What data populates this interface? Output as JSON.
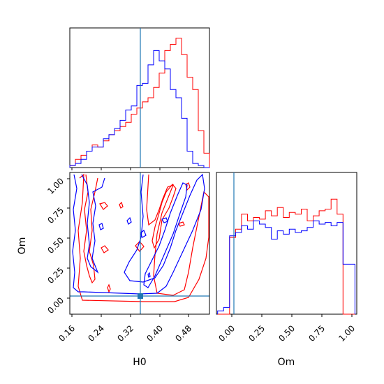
{
  "chart_data": {
    "type": "corner",
    "parameters": [
      "H0",
      "Om"
    ],
    "truths": {
      "H0": 0.35,
      "Om": 0.02
    },
    "colors": {
      "blue": "#0000ff",
      "red": "#ff0000",
      "truth": "#1f77b4"
    },
    "panels": {
      "hist_H0": {
        "bin_edges": [
          0.155,
          0.17,
          0.185,
          0.2,
          0.215,
          0.23,
          0.245,
          0.26,
          0.275,
          0.29,
          0.305,
          0.32,
          0.335,
          0.35,
          0.365,
          0.38,
          0.395,
          0.41,
          0.425,
          0.44,
          0.455,
          0.47,
          0.485,
          0.5,
          0.515,
          0.53
        ],
        "blue": [
          1,
          2,
          4,
          8,
          10,
          10,
          14,
          16,
          19,
          23,
          28,
          30,
          40,
          41,
          50,
          57,
          52,
          48,
          38,
          34,
          24,
          8,
          2,
          1,
          0
        ],
        "red": [
          1,
          4,
          6,
          8,
          11,
          10,
          13,
          16,
          18,
          20,
          22,
          26,
          29,
          32,
          34,
          39,
          46,
          57,
          60,
          63,
          55,
          44,
          38,
          18,
          7
        ],
        "ylim": [
          0,
          68
        ]
      },
      "hist_Om": {
        "bin_edges": [
          -0.1,
          -0.05,
          0.0,
          0.05,
          0.1,
          0.15,
          0.2,
          0.25,
          0.3,
          0.35,
          0.4,
          0.45,
          0.5,
          0.55,
          0.6,
          0.65,
          0.7,
          0.75,
          0.8,
          0.85,
          0.9,
          0.95,
          1.0,
          1.05
        ],
        "blue": [
          2,
          4,
          47,
          49,
          53,
          51,
          56,
          54,
          52,
          45,
          50,
          48,
          51,
          49,
          50,
          52,
          56,
          54,
          55,
          53,
          55,
          30,
          30
        ],
        "red": [
          0,
          0,
          46,
          51,
          60,
          56,
          58,
          57,
          62,
          59,
          64,
          58,
          61,
          60,
          63,
          56,
          59,
          62,
          63,
          69,
          60,
          0,
          0
        ],
        "ylim": [
          0,
          85
        ]
      },
      "joint": {
        "xlim": [
          0.155,
          0.53
        ],
        "ylim": [
          -0.12,
          1.05
        ]
      }
    },
    "x_axis_H0": {
      "label": "H0",
      "ticks": [
        "0.16",
        "0.24",
        "0.32",
        "0.40",
        "0.48"
      ]
    },
    "x_axis_Om": {
      "label": "Om",
      "ticks": [
        "0.00",
        "0.25",
        "0.50",
        "0.75",
        "1.00"
      ]
    },
    "y_axis_Om": {
      "label": "Om",
      "ticks": [
        "0.00",
        "0.25",
        "0.50",
        "0.75",
        "1.00"
      ]
    }
  }
}
